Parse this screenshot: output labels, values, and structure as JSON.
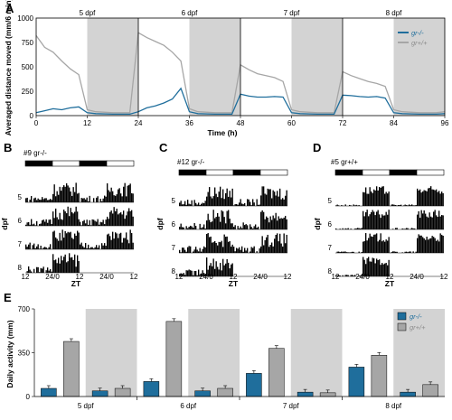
{
  "figure": {
    "panels": {
      "A": "A",
      "B": "B",
      "C": "C",
      "D": "D",
      "E": "E"
    }
  },
  "colors": {
    "mutant": "#1f6e9c",
    "wildtype": "#a6a6a6",
    "night": "#d3d3d3",
    "actogram": "#000000"
  },
  "chart_data": [
    {
      "panel": "A",
      "type": "line",
      "ylabel": "Averaged distance moved (mm/6 min)",
      "xlabel": "Time (h)",
      "xlim": [
        0,
        96
      ],
      "ylim": [
        0,
        1000
      ],
      "xticks": [
        "0",
        "12",
        "24",
        "36",
        "48",
        "60",
        "72",
        "84",
        "96"
      ],
      "yticks": [
        "0",
        "250",
        "500",
        "750",
        "1000"
      ],
      "day_labels": [
        "5 dpf",
        "6 dpf",
        "7 dpf",
        "8 dpf"
      ],
      "night_shading": [
        [
          12,
          24
        ],
        [
          36,
          48
        ],
        [
          60,
          72
        ],
        [
          84,
          96
        ]
      ],
      "legend": {
        "position": "top-right",
        "entries": [
          "gr-/-",
          "gr+/+"
        ]
      },
      "series": [
        {
          "name": "gr-/-",
          "color": "#1f6e9c",
          "x": [
            0,
            2,
            4,
            6,
            8,
            10,
            12,
            14,
            18,
            22,
            24,
            26,
            28,
            30,
            32,
            34,
            36,
            38,
            42,
            46,
            48,
            50,
            52,
            54,
            56,
            58,
            60,
            62,
            66,
            70,
            72,
            74,
            76,
            78,
            80,
            82,
            84,
            86,
            90,
            94,
            96
          ],
          "y": [
            30,
            50,
            70,
            60,
            80,
            90,
            30,
            20,
            15,
            15,
            40,
            80,
            100,
            130,
            170,
            280,
            40,
            20,
            15,
            15,
            220,
            200,
            190,
            190,
            195,
            190,
            30,
            20,
            15,
            15,
            210,
            205,
            195,
            190,
            195,
            180,
            30,
            20,
            15,
            15,
            20
          ]
        },
        {
          "name": "gr+/+",
          "color": "#a6a6a6",
          "x": [
            0,
            2,
            4,
            6,
            8,
            10,
            12,
            14,
            18,
            22,
            24,
            26,
            28,
            30,
            32,
            34,
            36,
            38,
            42,
            46,
            48,
            50,
            52,
            54,
            56,
            58,
            60,
            62,
            66,
            70,
            72,
            74,
            76,
            78,
            80,
            82,
            84,
            86,
            90,
            94,
            96
          ],
          "y": [
            820,
            700,
            650,
            560,
            480,
            420,
            60,
            40,
            30,
            30,
            850,
            800,
            760,
            720,
            650,
            560,
            70,
            40,
            30,
            30,
            520,
            470,
            430,
            410,
            390,
            350,
            60,
            40,
            30,
            30,
            450,
            410,
            380,
            350,
            330,
            300,
            60,
            40,
            30,
            30,
            40
          ]
        }
      ]
    },
    {
      "panel": "B",
      "type": "bar",
      "title": "#9 gr-/-",
      "ylabel": "dpf",
      "xlabel": "ZT",
      "rows": [
        "5",
        "6",
        "7",
        "8"
      ],
      "xticks": [
        "12",
        "24/0",
        "12",
        "24/0",
        "12"
      ]
    },
    {
      "panel": "C",
      "type": "bar",
      "title": "#12 gr-/-",
      "ylabel": "dpf",
      "xlabel": "ZT",
      "rows": [
        "5",
        "6",
        "7",
        "8"
      ],
      "xticks": [
        "12",
        "24/0",
        "12",
        "24/0",
        "12"
      ]
    },
    {
      "panel": "D",
      "type": "bar",
      "title": "#5 gr+/+",
      "ylabel": "dpf",
      "xlabel": "ZT",
      "rows": [
        "5",
        "6",
        "7",
        "8"
      ],
      "xticks": [
        "12",
        "24/0",
        "12",
        "24/0",
        "12"
      ]
    },
    {
      "panel": "E",
      "type": "bar",
      "ylabel": "Daily activity (mm)",
      "ylim": [
        0,
        700
      ],
      "yticks": [
        "0",
        "350",
        "700"
      ],
      "categories": [
        "5 dpf",
        "6 dpf",
        "7 dpf",
        "8 dpf"
      ],
      "periods": [
        "day",
        "night"
      ],
      "legend": {
        "position": "top-right",
        "entries": [
          "gr-/-",
          "gr+/+"
        ]
      },
      "series": [
        {
          "name": "gr-/-",
          "color": "#1f6e9c",
          "day": [
            65,
            120,
            185,
            235
          ],
          "night": [
            45,
            45,
            35,
            35
          ]
        },
        {
          "name": "gr+/+",
          "color": "#a6a6a6",
          "day": [
            440,
            600,
            385,
            330
          ],
          "night": [
            65,
            65,
            30,
            95
          ]
        }
      ]
    }
  ]
}
